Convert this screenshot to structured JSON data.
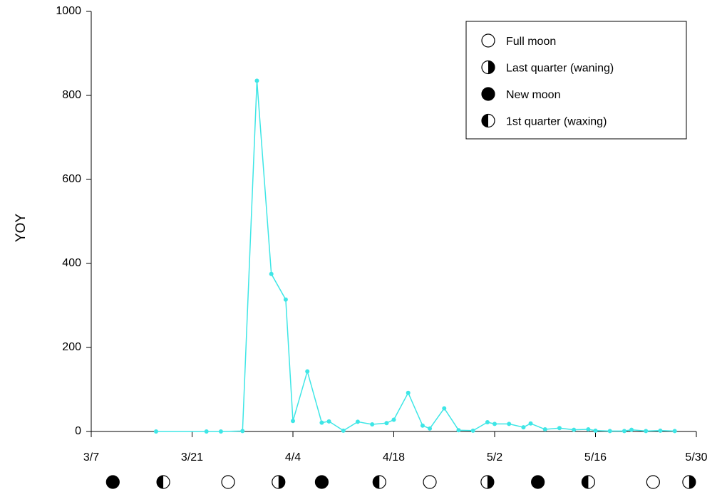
{
  "chart_data": {
    "type": "line",
    "y_label": "YOY",
    "x": [
      "3/16",
      "3/23",
      "3/25",
      "3/28",
      "3/30",
      "4/1",
      "4/3",
      "4/4",
      "4/6",
      "4/8",
      "4/9",
      "4/11",
      "4/13",
      "4/15",
      "4/17",
      "4/18",
      "4/20",
      "4/22",
      "4/23",
      "4/25",
      "4/27",
      "4/29",
      "5/1",
      "5/2",
      "5/4",
      "5/6",
      "5/7",
      "5/9",
      "5/11",
      "5/13",
      "5/15",
      "5/16",
      "5/18",
      "5/20",
      "5/21",
      "5/23",
      "5/25",
      "5/27"
    ],
    "series": [
      {
        "color": "#3ee6e6",
        "values": [
          0,
          0,
          0,
          1,
          835,
          375,
          314,
          25,
          143,
          21,
          24,
          2,
          23,
          17,
          20,
          28,
          92,
          14,
          7,
          55,
          3,
          2,
          22,
          18,
          18,
          10,
          19,
          5,
          8,
          4,
          5,
          2,
          1,
          1,
          4,
          1,
          2,
          1
        ]
      }
    ],
    "xlim": [
      "3/7",
      "5/30"
    ],
    "xticks": [
      "3/7",
      "3/21",
      "4/4",
      "4/18",
      "5/2",
      "5/16",
      "5/30"
    ],
    "ylim": [
      0,
      1000
    ],
    "yticks": [
      0,
      200,
      400,
      600,
      800,
      1000
    ],
    "legend": [
      {
        "label": "Full moon"
      },
      {
        "label": "Last quarter (waning)"
      },
      {
        "label": "New moon"
      },
      {
        "label": "1st quarter (waxing)"
      }
    ],
    "moon_phases": {
      "x": [
        "3/10",
        "3/17",
        "3/26",
        "4/2",
        "4/8",
        "4/16",
        "4/23",
        "5/1",
        "5/8",
        "5/15",
        "5/24",
        "5/29"
      ],
      "legend_index": [
        2,
        3,
        0,
        1,
        2,
        3,
        0,
        1,
        2,
        3,
        0,
        1
      ]
    }
  }
}
